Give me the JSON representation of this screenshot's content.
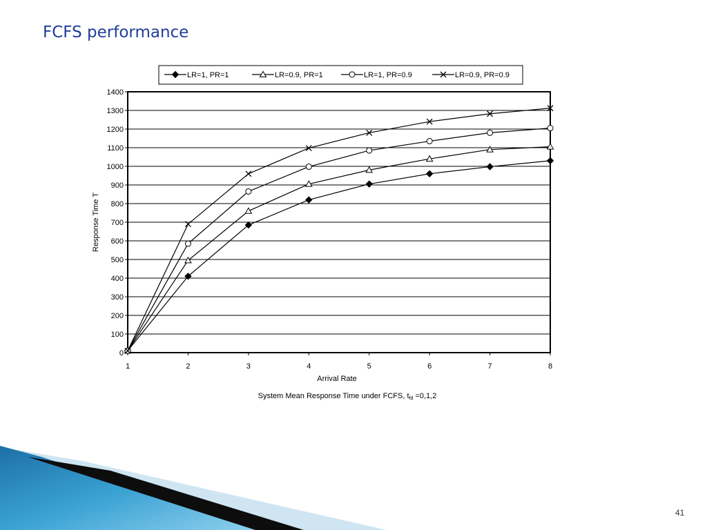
{
  "slide": {
    "title": "FCFS performance",
    "page_number": "41"
  },
  "colors": {
    "title": "#1f3d9a",
    "line": "#000000",
    "accent_blue": "#2a8ec3"
  },
  "chart_data": {
    "type": "line",
    "xlabel": "Arrival Rate",
    "ylabel": "Response Time T",
    "caption_main": "System  Mean Response Time under FCFS, t",
    "caption_sub": "fd",
    "caption_tail": " =0,1,2",
    "x": [
      1,
      2,
      3,
      4,
      5,
      6,
      7,
      8
    ],
    "xlim": [
      1,
      8
    ],
    "ylim": [
      0,
      1400
    ],
    "ytick_step": 100,
    "grid": true,
    "legend_position": "top",
    "series": [
      {
        "name": "LR=1, PR=1",
        "marker": "diamond",
        "values": [
          10,
          410,
          685,
          820,
          905,
          960,
          998,
          1030
        ]
      },
      {
        "name": "LR=0.9, PR=1",
        "marker": "triangle",
        "values": [
          10,
          495,
          760,
          905,
          980,
          1040,
          1090,
          1105
        ]
      },
      {
        "name": "LR=1, PR=0.9",
        "marker": "circle",
        "values": [
          10,
          585,
          865,
          998,
          1085,
          1135,
          1180,
          1205
        ]
      },
      {
        "name": "LR=0.9, PR=0.9",
        "marker": "cross",
        "values": [
          10,
          690,
          960,
          1098,
          1180,
          1240,
          1282,
          1312
        ]
      }
    ]
  }
}
